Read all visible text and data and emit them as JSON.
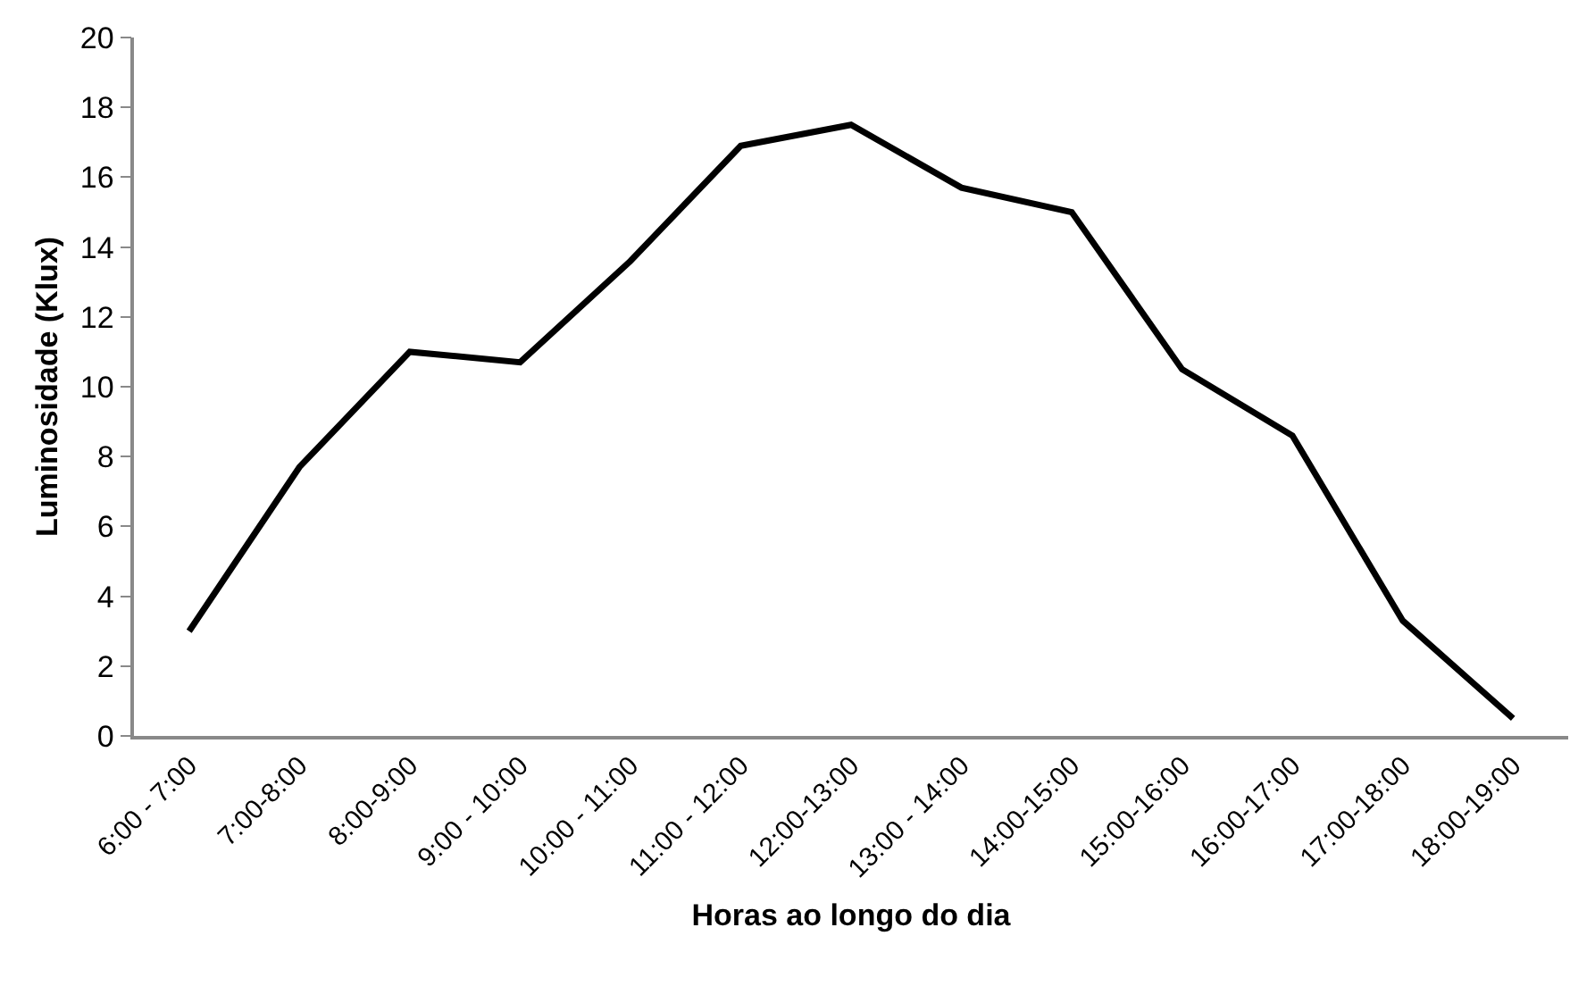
{
  "chart_data": {
    "type": "line",
    "xlabel": "Horas ao longo do dia",
    "ylabel": "Luminosidade (Klux)",
    "categories": [
      "6:00 - 7:00",
      "7:00-8:00",
      "8:00-9:00",
      "9:00 - 10:00",
      "10:00 - 11:00",
      "11:00 - 12:00",
      "12:00-13:00",
      "13:00 - 14:00",
      "14:00-15:00",
      "15:00-16:00",
      "16:00-17:00",
      "17:00-18:00",
      "18:00-19:00"
    ],
    "series": [
      {
        "color": "#000000",
        "values": [
          3.0,
          7.7,
          11.0,
          10.7,
          13.6,
          16.9,
          17.5,
          15.7,
          15.0,
          10.5,
          8.6,
          3.3,
          0.5
        ]
      }
    ],
    "ylim": [
      0,
      20
    ],
    "yticks": [
      0,
      2,
      4,
      6,
      8,
      10,
      12,
      14,
      16,
      18,
      20
    ],
    "grid": false,
    "marker": "none",
    "line_style": "solid"
  }
}
